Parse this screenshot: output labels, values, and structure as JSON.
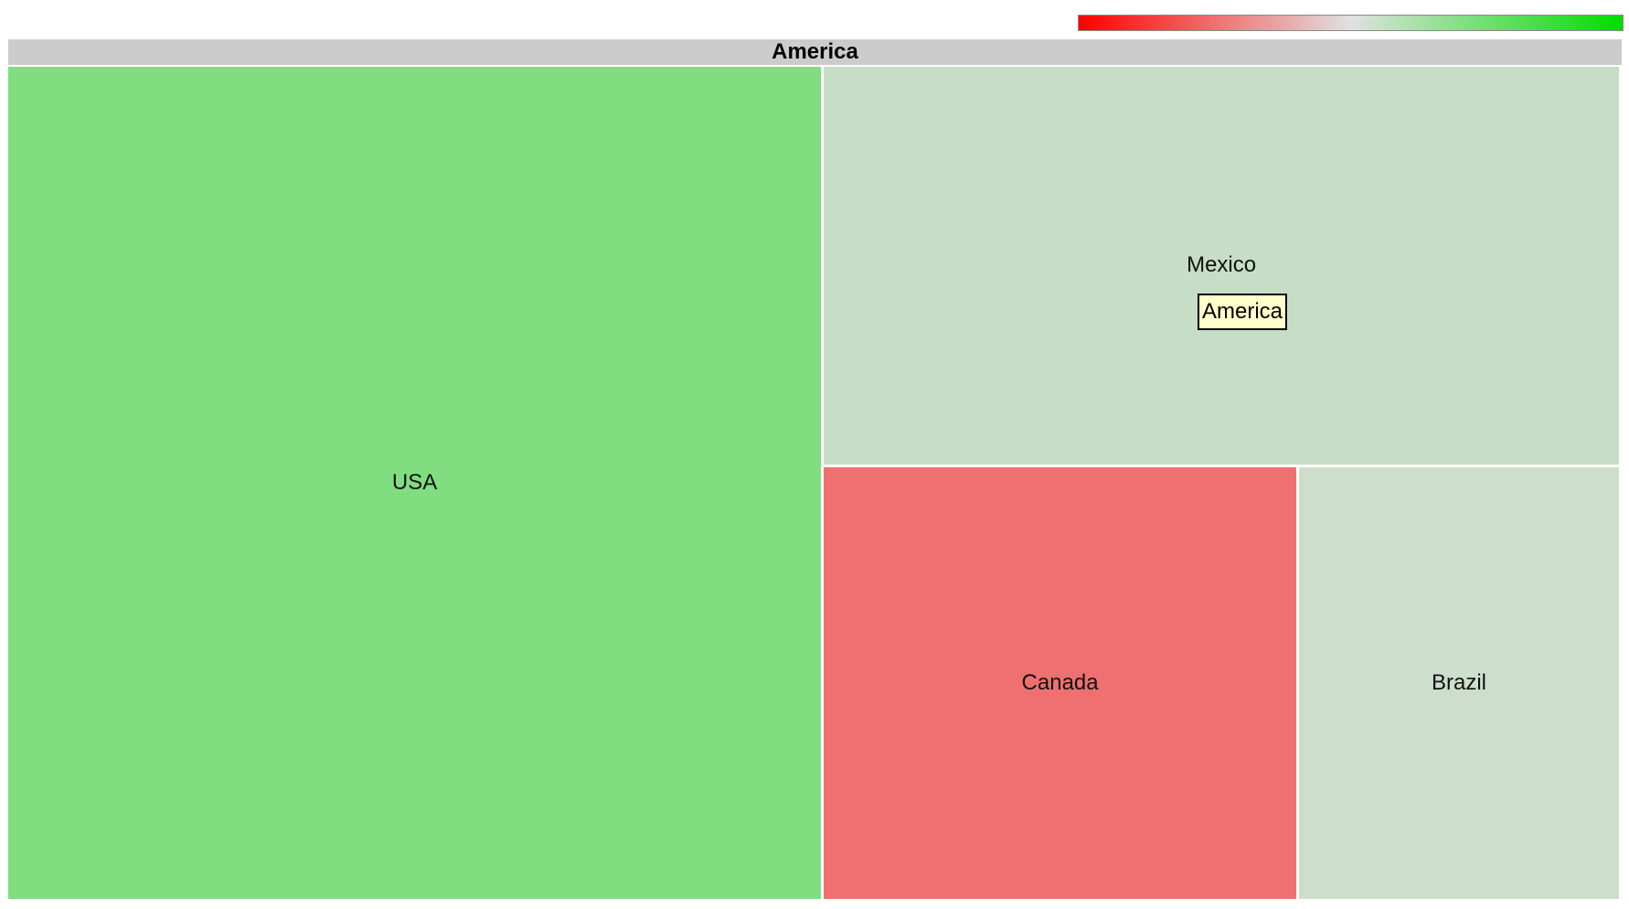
{
  "colors": {
    "header_bg": "#cccccc",
    "tooltip_bg": "#ffffcc",
    "scale_min": "#ff0000",
    "scale_mid": "#e0e0e0",
    "scale_max": "#00dd00"
  },
  "chart_data": {
    "type": "treemap",
    "root": "America",
    "children": [
      {
        "name": "USA",
        "color": "#80dd80",
        "size": 10,
        "rect": [
          0.0,
          0.0,
          0.5055,
          1.0
        ]
      },
      {
        "name": "Mexico",
        "color": "#c5dec5",
        "size": 5,
        "rect": [
          0.5055,
          0.0,
          0.4945,
          0.4795
        ]
      },
      {
        "name": "Canada",
        "color": "#ef7070",
        "size": 3,
        "rect": [
          0.5055,
          0.4795,
          0.2945,
          0.5205
        ]
      },
      {
        "name": "Brazil",
        "color": "#cddecd",
        "size": 2,
        "rect": [
          0.8,
          0.4795,
          0.2,
          0.5205
        ]
      }
    ],
    "tooltip": {
      "text": "America"
    }
  }
}
